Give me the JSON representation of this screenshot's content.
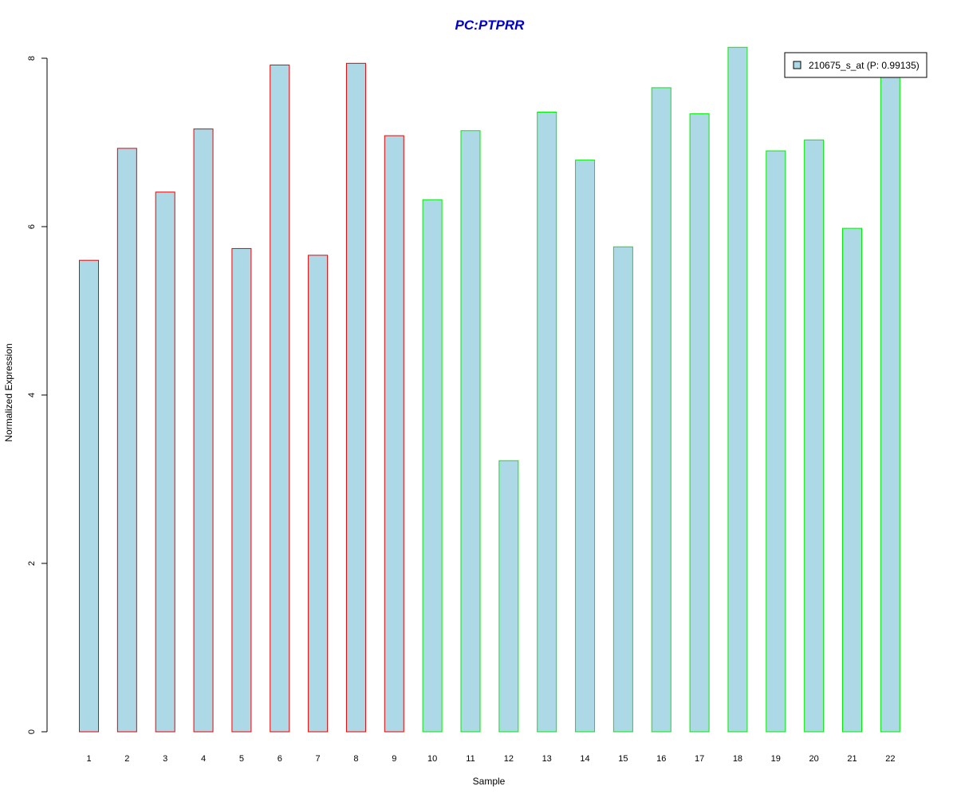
{
  "chart_data": {
    "type": "bar",
    "title": "PC:PTPRR",
    "xlabel": "Sample",
    "ylabel": "Normalized Expression",
    "categories": [
      "1",
      "2",
      "3",
      "4",
      "5",
      "6",
      "7",
      "8",
      "9",
      "10",
      "11",
      "12",
      "13",
      "14",
      "15",
      "16",
      "17",
      "18",
      "19",
      "20",
      "21",
      "22"
    ],
    "series": [
      {
        "name": "210675_s_at (P: 0.99135)",
        "values": [
          5.6,
          6.93,
          6.41,
          7.16,
          5.74,
          7.92,
          5.66,
          7.94,
          7.08,
          6.32,
          7.14,
          3.22,
          7.36,
          6.79,
          5.76,
          7.65,
          7.34,
          8.13,
          6.9,
          7.03,
          5.98,
          7.82
        ]
      }
    ],
    "groups": [
      {
        "from": 1,
        "to": 9,
        "border_color": "#ee0000"
      },
      {
        "from": 10,
        "to": 22,
        "border_color": "#00ee00"
      }
    ],
    "ylim": [
      0,
      8
    ],
    "yticks": [
      0,
      2,
      4,
      6,
      8
    ],
    "legend_position": "top-right",
    "grid": false,
    "colors": {
      "title": "#0000cc",
      "bar_fill": "#add8e6"
    }
  }
}
